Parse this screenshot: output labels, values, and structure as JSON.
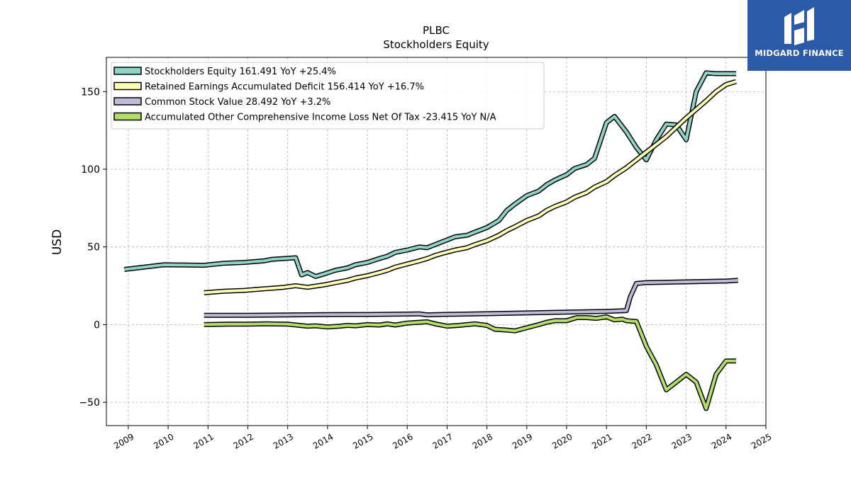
{
  "chart_data": {
    "type": "line",
    "title": "PLBC",
    "subtitle": "Stockholders  Equity",
    "ylabel": "USD",
    "xlabel": "",
    "xlim": [
      2008.45,
      2025.0
    ],
    "ylim": [
      -65,
      172
    ],
    "xticks": [
      2009,
      2010,
      2011,
      2012,
      2013,
      2014,
      2015,
      2016,
      2017,
      2018,
      2019,
      2020,
      2021,
      2022,
      2023,
      2024,
      2025
    ],
    "yticks": [
      -50,
      0,
      50,
      100,
      150
    ],
    "grid": true,
    "legend_position": "top-left",
    "series": [
      {
        "name": "Stockholders Equity",
        "legend_label": "Stockholders Equity  161.491 YoY +25.4%",
        "color": "#8dd3c7",
        "x": [
          2008.9,
          2009.9,
          2010.9,
          2011.4,
          2011.9,
          2012.4,
          2012.6,
          2012.9,
          2013.2,
          2013.35,
          2013.5,
          2013.7,
          2013.9,
          2014.2,
          2014.5,
          2014.7,
          2015.0,
          2015.3,
          2015.5,
          2015.7,
          2016.0,
          2016.3,
          2016.5,
          2016.7,
          2016.9,
          2017.2,
          2017.5,
          2017.7,
          2018.0,
          2018.3,
          2018.5,
          2018.7,
          2019.0,
          2019.3,
          2019.5,
          2019.7,
          2020.0,
          2020.2,
          2020.5,
          2020.7,
          2021.0,
          2021.2,
          2021.5,
          2021.75,
          2022.0,
          2022.25,
          2022.5,
          2022.75,
          2023.0,
          2023.25,
          2023.5,
          2023.75,
          2024.0,
          2024.25
        ],
        "y": [
          35.5,
          38.5,
          38.2,
          39.5,
          40.0,
          41.0,
          42.0,
          42.5,
          43.0,
          32.0,
          33.5,
          31.0,
          32.5,
          35.0,
          36.5,
          38.5,
          40.0,
          42.5,
          44.0,
          46.5,
          48.0,
          50.0,
          49.5,
          51.5,
          53.5,
          56.5,
          57.5,
          59.5,
          62.5,
          67.0,
          73.5,
          77.5,
          83.0,
          86.0,
          90.0,
          93.0,
          96.5,
          100.5,
          103.0,
          107.0,
          130.0,
          134.0,
          124.0,
          114.0,
          106.0,
          119.0,
          129.0,
          128.5,
          119.0,
          150.0,
          162.0,
          161.5,
          161.5,
          161.5
        ]
      },
      {
        "name": "Retained Earnings Accumulated Deficit",
        "legend_label": "Retained Earnings Accumulated Deficit  156.414 YoY +16.7%",
        "color": "#ffffb3",
        "x": [
          2010.9,
          2011.4,
          2011.9,
          2012.4,
          2012.9,
          2013.2,
          2013.5,
          2013.9,
          2014.2,
          2014.5,
          2014.7,
          2015.0,
          2015.3,
          2015.5,
          2015.7,
          2016.0,
          2016.3,
          2016.5,
          2016.7,
          2016.9,
          2017.2,
          2017.5,
          2017.7,
          2018.0,
          2018.3,
          2018.5,
          2018.7,
          2019.0,
          2019.3,
          2019.5,
          2019.7,
          2020.0,
          2020.2,
          2020.5,
          2020.7,
          2021.0,
          2021.2,
          2021.5,
          2021.75,
          2022.0,
          2022.25,
          2022.5,
          2022.75,
          2023.0,
          2023.25,
          2023.5,
          2023.75,
          2024.0,
          2024.25
        ],
        "y": [
          20.5,
          21.5,
          22.0,
          23.0,
          24.0,
          25.0,
          24.0,
          25.5,
          27.0,
          28.5,
          30.0,
          31.5,
          33.5,
          35.0,
          37.0,
          39.0,
          41.0,
          42.5,
          44.5,
          46.0,
          48.0,
          49.5,
          51.5,
          54.0,
          57.5,
          60.5,
          63.0,
          67.0,
          70.0,
          73.5,
          76.0,
          79.0,
          82.0,
          85.0,
          88.5,
          92.0,
          96.0,
          101.0,
          106.0,
          111.0,
          116.0,
          121.0,
          127.0,
          133.0,
          138.5,
          144.0,
          150.0,
          154.5,
          156.4
        ]
      },
      {
        "name": "Common Stock Value",
        "legend_label": "Common Stock Value  28.492 YoY +3.2%",
        "color": "#bebada",
        "x": [
          2010.9,
          2012.0,
          2013.0,
          2014.0,
          2015.0,
          2016.0,
          2016.3,
          2016.5,
          2017.0,
          2018.0,
          2019.0,
          2020.0,
          2021.0,
          2021.5,
          2021.6,
          2021.75,
          2022.0,
          2023.0,
          2024.0,
          2024.3
        ],
        "y": [
          6.0,
          6.0,
          6.2,
          6.4,
          6.5,
          6.8,
          6.9,
          6.3,
          6.6,
          7.0,
          7.5,
          8.0,
          8.5,
          9.0,
          18.0,
          26.5,
          27.0,
          27.5,
          28.0,
          28.5
        ]
      },
      {
        "name": "Accumulated Other Comprehensive Income Loss Net Of Tax",
        "legend_label": "Accumulated Other Comprehensive Income Loss Net Of Tax  -23.415 YoY N/A",
        "color": "#b3de69",
        "x": [
          2010.9,
          2011.5,
          2012.0,
          2012.5,
          2013.0,
          2013.3,
          2013.5,
          2013.7,
          2014.0,
          2014.3,
          2014.5,
          2014.7,
          2015.0,
          2015.3,
          2015.5,
          2015.7,
          2016.0,
          2016.3,
          2016.5,
          2016.7,
          2017.0,
          2017.3,
          2017.5,
          2017.7,
          2018.0,
          2018.2,
          2018.5,
          2018.7,
          2019.0,
          2019.3,
          2019.5,
          2019.7,
          2020.0,
          2020.25,
          2020.5,
          2020.75,
          2021.0,
          2021.2,
          2021.4,
          2021.5,
          2021.75,
          2022.0,
          2022.25,
          2022.5,
          2022.75,
          2023.0,
          2023.25,
          2023.5,
          2023.75,
          2024.0,
          2024.25
        ],
        "y": [
          0.0,
          0.3,
          0.3,
          0.5,
          0.3,
          -0.5,
          -1.0,
          -0.8,
          -1.5,
          -1.0,
          -0.5,
          -0.8,
          0.0,
          -0.3,
          0.5,
          -0.3,
          1.0,
          1.5,
          1.8,
          0.5,
          -1.0,
          -0.5,
          0.0,
          0.5,
          -0.5,
          -3.0,
          -3.5,
          -4.0,
          -2.0,
          0.0,
          1.5,
          2.5,
          2.5,
          4.5,
          4.5,
          4.0,
          5.0,
          3.0,
          3.5,
          2.5,
          2.0,
          -14.0,
          -26.0,
          -42.0,
          -37.0,
          -32.0,
          -37.0,
          -54.0,
          -32.0,
          -23.4,
          -23.4
        ]
      }
    ]
  },
  "brand": {
    "name": "MIDGARD FINANCE",
    "color": "#2b5aa8"
  }
}
